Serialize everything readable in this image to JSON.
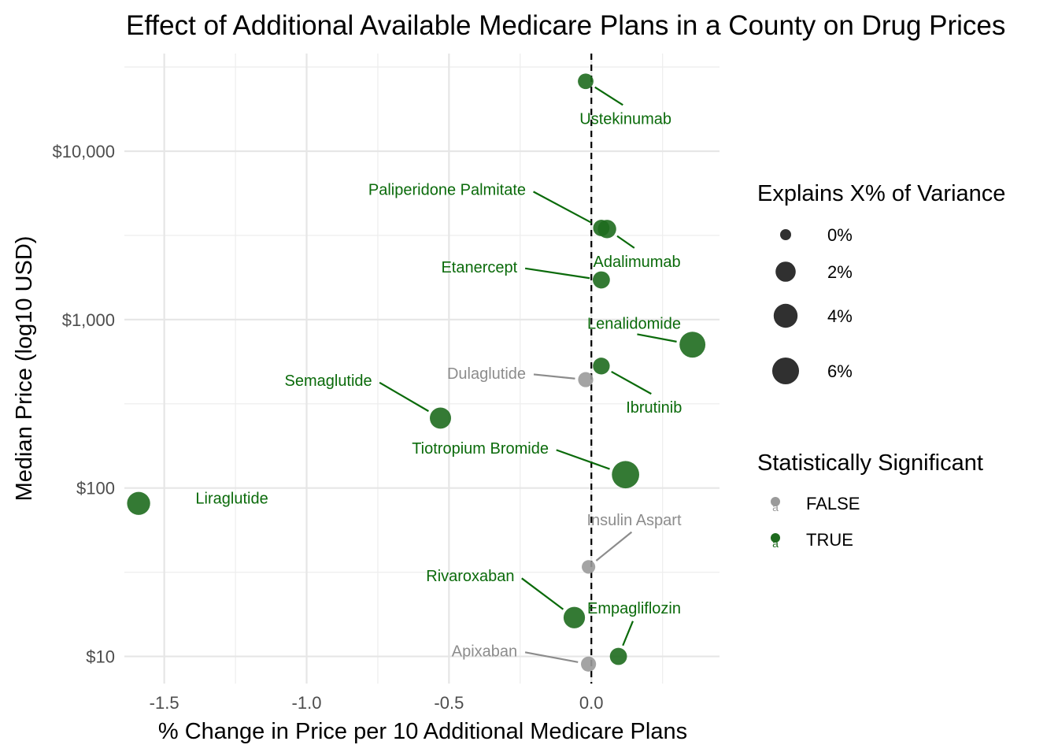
{
  "chart_data": {
    "type": "scatter",
    "title": "Effect of Additional Available Medicare Plans in a County on Drug Prices",
    "xlabel": "% Change in Price per 10 Additional Medicare Plans",
    "ylabel": "Median Price (log10 USD)",
    "x_scale": "linear",
    "y_scale": "log10",
    "xlim": [
      -1.64,
      0.45
    ],
    "ylim": [
      6.9,
      38000
    ],
    "x_ticks": [
      -1.5,
      -1.0,
      -0.5,
      0.0
    ],
    "x_tick_labels": [
      "-1.5",
      "-1.0",
      "-0.5",
      "0.0"
    ],
    "y_ticks": [
      10,
      100,
      1000,
      10000
    ],
    "y_tick_labels": [
      "$10",
      "$100",
      "$1,000",
      "$10,000"
    ],
    "reference_line": {
      "x": 0,
      "style": "dashed"
    },
    "grid": true,
    "legend_position": "right",
    "colors": {
      "significant": "#1e6b1e",
      "not_significant": "#9a9a9a",
      "label_significant": "#0a6a0a",
      "label_not_significant": "#8c8c8c"
    },
    "size_legend": {
      "title": "Explains X% of Variance",
      "entries": [
        {
          "value": 0,
          "label": "0%"
        },
        {
          "value": 2,
          "label": "2%"
        },
        {
          "value": 4,
          "label": "4%"
        },
        {
          "value": 6,
          "label": "6%"
        }
      ]
    },
    "color_legend": {
      "title": "Statistically Significant",
      "entries": [
        {
          "value": false,
          "label": "FALSE",
          "key_glyph": "a"
        },
        {
          "value": true,
          "label": "TRUE",
          "key_glyph": "a"
        }
      ]
    },
    "points": [
      {
        "name": "Ustekinumab",
        "x": -0.02,
        "y": 26000,
        "variance_pct": 0.5,
        "significant": true,
        "label_x": 0.12,
        "label_y": 14500,
        "label_anchor": "middle"
      },
      {
        "name": "Paliperidone Palmitate",
        "x": 0.035,
        "y": 3500,
        "variance_pct": 0.7,
        "significant": true,
        "label_x": -0.23,
        "label_y": 5500,
        "label_anchor": "end"
      },
      {
        "name": "Adalimumab",
        "x": 0.055,
        "y": 3450,
        "variance_pct": 1.3,
        "significant": true,
        "label_x": 0.16,
        "label_y": 2050,
        "label_anchor": "middle"
      },
      {
        "name": "Etanercept",
        "x": 0.035,
        "y": 1720,
        "variance_pct": 0.9,
        "significant": true,
        "label_x": -0.26,
        "label_y": 1900,
        "label_anchor": "end"
      },
      {
        "name": "Lenalidomide",
        "x": 0.355,
        "y": 710,
        "variance_pct": 5.3,
        "significant": true,
        "label_x": 0.15,
        "label_y": 880,
        "label_anchor": "middle"
      },
      {
        "name": "Ibrutinib",
        "x": 0.035,
        "y": 530,
        "variance_pct": 0.8,
        "significant": true,
        "label_x": 0.22,
        "label_y": 280,
        "label_anchor": "middle"
      },
      {
        "name": "Dulaglutide",
        "x": -0.02,
        "y": 440,
        "variance_pct": 0.4,
        "significant": false,
        "label_x": -0.23,
        "label_y": 445,
        "label_anchor": "end"
      },
      {
        "name": "Semaglutide",
        "x": -0.53,
        "y": 260,
        "variance_pct": 2.5,
        "significant": true,
        "label_x": -0.77,
        "label_y": 405,
        "label_anchor": "end"
      },
      {
        "name": "Tiotropium Bromide",
        "x": 0.12,
        "y": 120,
        "variance_pct": 6.4,
        "significant": true,
        "label_x": -0.15,
        "label_y": 160,
        "label_anchor": "end"
      },
      {
        "name": "Liraglutide",
        "x": -1.59,
        "y": 81,
        "variance_pct": 3.5,
        "significant": true,
        "label_x": -1.39,
        "label_y": 81,
        "label_anchor": "start"
      },
      {
        "name": "Insulin Aspart",
        "x": -0.01,
        "y": 34,
        "variance_pct": 0.15,
        "significant": false,
        "label_x": 0.15,
        "label_y": 60,
        "label_anchor": "middle"
      },
      {
        "name": "Rivaroxaban",
        "x": -0.06,
        "y": 17,
        "variance_pct": 2.6,
        "significant": true,
        "label_x": -0.27,
        "label_y": 28,
        "label_anchor": "end"
      },
      {
        "name": "Empagliflozin",
        "x": 0.095,
        "y": 10,
        "variance_pct": 0.9,
        "significant": true,
        "label_x": 0.15,
        "label_y": 18,
        "label_anchor": "middle"
      },
      {
        "name": "Apixaban",
        "x": -0.01,
        "y": 9,
        "variance_pct": 0.4,
        "significant": false,
        "label_x": -0.26,
        "label_y": 10,
        "label_anchor": "end"
      }
    ]
  }
}
